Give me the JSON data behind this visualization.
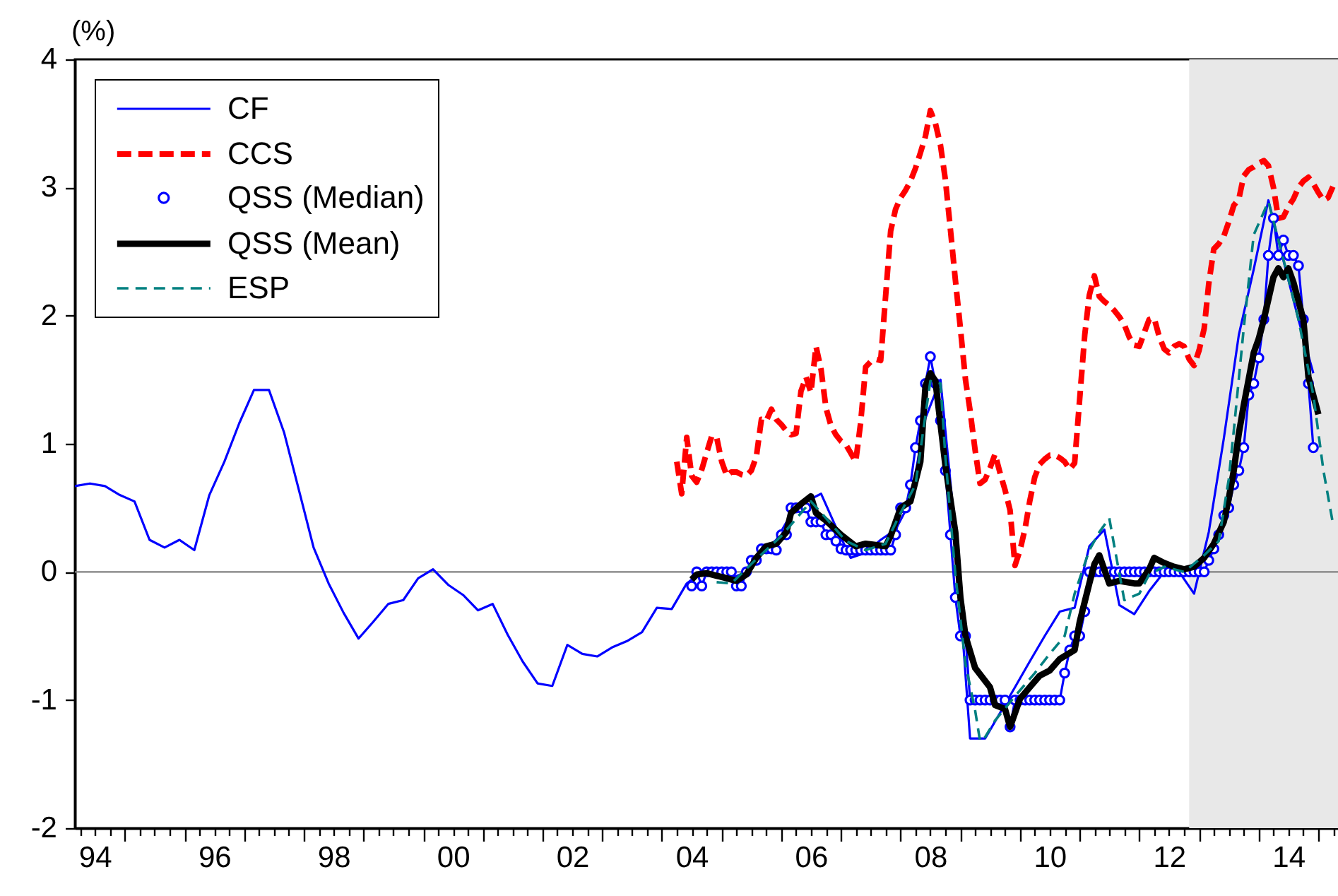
{
  "chart_data": {
    "type": "line",
    "ylabel": "(%)",
    "xlim": [
      "1994-03",
      "2015-05"
    ],
    "ylim": [
      -2,
      4
    ],
    "xticks": [
      {
        "value": "1994-04",
        "label": null
      },
      {
        "value": "1994-07",
        "label": "94"
      },
      {
        "value": "1994-10",
        "label": null
      },
      {
        "value": "1995-01",
        "label": null
      },
      {
        "value": "1995-04",
        "label": null
      },
      {
        "value": "1995-07",
        "label": null
      },
      {
        "value": "1995-10",
        "label": null
      },
      {
        "value": "1996-01",
        "label": null
      },
      {
        "value": "1996-04",
        "label": null
      },
      {
        "value": "1996-07",
        "label": "96"
      },
      {
        "value": "1996-10",
        "label": null
      },
      {
        "value": "1997-01",
        "label": null
      },
      {
        "value": "1997-04",
        "label": null
      },
      {
        "value": "1997-07",
        "label": null
      },
      {
        "value": "1997-10",
        "label": null
      },
      {
        "value": "1998-01",
        "label": null
      },
      {
        "value": "1998-04",
        "label": null
      },
      {
        "value": "1998-07",
        "label": "98"
      },
      {
        "value": "1998-10",
        "label": null
      },
      {
        "value": "1999-01",
        "label": null
      },
      {
        "value": "1999-04",
        "label": null
      },
      {
        "value": "1999-07",
        "label": null
      },
      {
        "value": "1999-10",
        "label": null
      },
      {
        "value": "2000-01",
        "label": null
      },
      {
        "value": "2000-04",
        "label": null
      },
      {
        "value": "2000-07",
        "label": "00"
      },
      {
        "value": "2000-10",
        "label": null
      },
      {
        "value": "2001-01",
        "label": null
      },
      {
        "value": "2001-04",
        "label": null
      },
      {
        "value": "2001-07",
        "label": null
      },
      {
        "value": "2001-10",
        "label": null
      },
      {
        "value": "2002-01",
        "label": null
      },
      {
        "value": "2002-04",
        "label": null
      },
      {
        "value": "2002-07",
        "label": "02"
      },
      {
        "value": "2002-10",
        "label": null
      },
      {
        "value": "2003-01",
        "label": null
      },
      {
        "value": "2003-04",
        "label": null
      },
      {
        "value": "2003-07",
        "label": null
      },
      {
        "value": "2003-10",
        "label": null
      },
      {
        "value": "2004-01",
        "label": null
      },
      {
        "value": "2004-04",
        "label": null
      },
      {
        "value": "2004-07",
        "label": "04"
      },
      {
        "value": "2004-10",
        "label": null
      },
      {
        "value": "2005-01",
        "label": null
      },
      {
        "value": "2005-04",
        "label": null
      },
      {
        "value": "2005-07",
        "label": null
      },
      {
        "value": "2005-10",
        "label": null
      },
      {
        "value": "2006-01",
        "label": null
      },
      {
        "value": "2006-04",
        "label": null
      },
      {
        "value": "2006-07",
        "label": "06"
      },
      {
        "value": "2006-10",
        "label": null
      },
      {
        "value": "2007-01",
        "label": null
      },
      {
        "value": "2007-04",
        "label": null
      },
      {
        "value": "2007-07",
        "label": null
      },
      {
        "value": "2007-10",
        "label": null
      },
      {
        "value": "2008-01",
        "label": null
      },
      {
        "value": "2008-04",
        "label": null
      },
      {
        "value": "2008-07",
        "label": "08"
      },
      {
        "value": "2008-10",
        "label": null
      },
      {
        "value": "2009-01",
        "label": null
      },
      {
        "value": "2009-04",
        "label": null
      },
      {
        "value": "2009-07",
        "label": null
      },
      {
        "value": "2009-10",
        "label": null
      },
      {
        "value": "2010-01",
        "label": null
      },
      {
        "value": "2010-04",
        "label": null
      },
      {
        "value": "2010-07",
        "label": "10"
      },
      {
        "value": "2010-10",
        "label": null
      },
      {
        "value": "2011-01",
        "label": null
      },
      {
        "value": "2011-04",
        "label": null
      },
      {
        "value": "2011-07",
        "label": null
      },
      {
        "value": "2011-10",
        "label": null
      },
      {
        "value": "2012-01",
        "label": null
      },
      {
        "value": "2012-04",
        "label": null
      },
      {
        "value": "2012-07",
        "label": "12"
      },
      {
        "value": "2012-10",
        "label": null
      },
      {
        "value": "2013-01",
        "label": null
      },
      {
        "value": "2013-04",
        "label": null
      },
      {
        "value": "2013-07",
        "label": null
      },
      {
        "value": "2013-10",
        "label": null
      },
      {
        "value": "2014-01",
        "label": null
      },
      {
        "value": "2014-04",
        "label": null
      },
      {
        "value": "2014-07",
        "label": "14"
      },
      {
        "value": "2014-10",
        "label": null
      },
      {
        "value": "2015-01",
        "label": null
      },
      {
        "value": "2015-04",
        "label": null
      }
    ],
    "yticks": [
      -2,
      -1,
      0,
      1,
      2,
      3,
      4
    ],
    "legend": "top left",
    "ref_lines": [
      {
        "axis": "y",
        "value": 0,
        "color": "#808080"
      }
    ],
    "bands": [
      {
        "axis": "x",
        "from": "2012-11",
        "to": "2015-05",
        "color": "#e8e8e8"
      }
    ],
    "series": [
      {
        "name": "CF",
        "color": "#0000ff",
        "line_style": "solid",
        "marker": "none",
        "x": [
          "1994-03",
          "1994-06",
          "1994-09",
          "1994-12",
          "1995-03",
          "1995-06",
          "1995-09",
          "1995-12",
          "1996-03",
          "1996-06",
          "1996-09",
          "1996-12",
          "1997-03",
          "1997-06",
          "1997-09",
          "1997-12",
          "1998-03",
          "1998-06",
          "1998-09",
          "1998-12",
          "1999-03",
          "1999-06",
          "1999-09",
          "1999-12",
          "2000-03",
          "2000-06",
          "2000-09",
          "2000-12",
          "2001-03",
          "2001-06",
          "2001-09",
          "2001-12",
          "2002-03",
          "2002-06",
          "2002-09",
          "2002-12",
          "2003-03",
          "2003-06",
          "2003-09",
          "2003-12",
          "2004-03",
          "2004-06",
          "2004-09",
          "2004-12",
          "2005-03",
          "2005-06",
          "2005-09",
          "2005-12",
          "2006-03",
          "2006-06",
          "2006-09",
          "2006-12",
          "2007-03",
          "2007-06",
          "2007-09",
          "2007-12",
          "2008-03",
          "2008-06",
          "2008-09",
          "2008-12",
          "2009-03",
          "2009-06",
          "2009-09",
          "2009-12",
          "2010-03",
          "2010-06",
          "2010-09",
          "2010-12",
          "2011-03",
          "2011-06",
          "2011-09",
          "2011-12",
          "2012-03",
          "2012-06",
          "2012-09",
          "2012-12",
          "2013-03",
          "2013-06",
          "2013-09",
          "2013-12",
          "2014-03",
          "2014-06",
          "2014-09",
          "2014-12"
        ],
        "values": [
          0.67,
          0.69,
          0.67,
          0.6,
          0.55,
          0.25,
          0.19,
          0.25,
          0.17,
          0.6,
          0.86,
          1.16,
          1.42,
          1.42,
          1.09,
          0.64,
          0.19,
          -0.09,
          -0.32,
          -0.52,
          -0.39,
          -0.25,
          -0.22,
          -0.05,
          0.02,
          -0.1,
          -0.18,
          -0.3,
          -0.25,
          -0.49,
          -0.7,
          -0.87,
          -0.89,
          -0.57,
          -0.64,
          -0.66,
          -0.59,
          -0.54,
          -0.47,
          -0.28,
          -0.29,
          -0.09,
          0.0,
          -0.02,
          -0.05,
          0.0,
          0.15,
          0.25,
          0.45,
          0.55,
          0.61,
          0.35,
          0.11,
          0.15,
          0.25,
          0.33,
          0.55,
          1.2,
          1.5,
          0.3,
          -1.3,
          -1.3,
          -1.1,
          -0.9,
          -0.7,
          -0.5,
          -0.31,
          -0.28,
          0.2,
          0.33,
          -0.26,
          -0.33,
          -0.15,
          0.0,
          0.0,
          -0.17,
          0.31,
          1.04,
          1.85,
          2.36,
          2.9,
          2.43,
          1.97,
          1.55
        ]
      },
      {
        "name": "CCS",
        "color": "#ff0000",
        "line_style": "dashed",
        "marker": "none",
        "x": [
          "2004-04",
          "2004-05",
          "2004-06",
          "2004-07",
          "2004-08",
          "2004-09",
          "2004-10",
          "2004-11",
          "2004-12",
          "2005-01",
          "2005-02",
          "2005-03",
          "2005-04",
          "2005-05",
          "2005-06",
          "2005-07",
          "2005-08",
          "2005-09",
          "2005-10",
          "2005-11",
          "2005-12",
          "2006-01",
          "2006-02",
          "2006-03",
          "2006-04",
          "2006-05",
          "2006-06",
          "2006-07",
          "2006-08",
          "2006-09",
          "2006-10",
          "2006-11",
          "2006-12",
          "2007-01",
          "2007-02",
          "2007-03",
          "2007-04",
          "2007-05",
          "2007-06",
          "2007-07",
          "2007-08",
          "2007-09",
          "2007-10",
          "2007-11",
          "2007-12",
          "2008-01",
          "2008-02",
          "2008-03",
          "2008-04",
          "2008-05",
          "2008-06",
          "2008-07",
          "2008-08",
          "2008-09",
          "2008-10",
          "2008-11",
          "2008-12",
          "2009-01",
          "2009-02",
          "2009-03",
          "2009-04",
          "2009-05",
          "2009-06",
          "2009-07",
          "2009-08",
          "2009-09",
          "2009-10",
          "2009-11",
          "2009-12",
          "2010-01",
          "2010-02",
          "2010-03",
          "2010-04",
          "2010-05",
          "2010-06",
          "2010-07",
          "2010-08",
          "2010-09",
          "2010-10",
          "2010-11",
          "2010-12",
          "2011-01",
          "2011-02",
          "2011-03",
          "2011-04",
          "2011-05",
          "2011-06",
          "2011-07",
          "2011-08",
          "2011-09",
          "2011-10",
          "2011-11",
          "2011-12",
          "2012-01",
          "2012-02",
          "2012-03",
          "2012-04",
          "2012-05",
          "2012-06",
          "2012-07",
          "2012-08",
          "2012-09",
          "2012-10",
          "2012-11",
          "2012-12",
          "2013-01",
          "2013-02",
          "2013-03",
          "2013-04",
          "2013-05",
          "2013-06",
          "2013-07",
          "2013-08",
          "2013-09",
          "2013-10",
          "2013-11",
          "2013-12",
          "2014-01",
          "2014-02",
          "2014-03",
          "2014-04",
          "2014-05",
          "2014-06",
          "2014-07",
          "2014-08",
          "2014-09",
          "2014-10",
          "2014-11",
          "2014-12",
          "2015-01",
          "2015-02",
          "2015-03",
          "2015-04"
        ],
        "values": [
          0.86,
          0.61,
          1.05,
          0.75,
          0.7,
          0.8,
          0.93,
          1.06,
          1.05,
          0.86,
          0.75,
          0.78,
          0.78,
          0.76,
          0.75,
          0.79,
          0.9,
          1.19,
          1.18,
          1.27,
          1.19,
          1.15,
          1.1,
          1.07,
          1.08,
          1.41,
          1.52,
          1.4,
          1.76,
          1.58,
          1.28,
          1.14,
          1.07,
          1.02,
          0.99,
          0.93,
          0.86,
          1.16,
          1.6,
          1.64,
          1.66,
          1.65,
          2.15,
          2.66,
          2.83,
          2.92,
          2.98,
          3.05,
          3.15,
          3.27,
          3.4,
          3.6,
          3.5,
          3.33,
          3.06,
          2.67,
          2.28,
          1.9,
          1.5,
          1.26,
          0.95,
          0.69,
          0.72,
          0.81,
          0.92,
          0.77,
          0.64,
          0.48,
          0.05,
          0.17,
          0.34,
          0.55,
          0.74,
          0.84,
          0.88,
          0.91,
          0.91,
          0.89,
          0.86,
          0.8,
          0.85,
          1.35,
          1.85,
          2.16,
          2.31,
          2.15,
          2.11,
          2.08,
          2.04,
          1.99,
          1.93,
          1.83,
          1.77,
          1.76,
          1.87,
          1.97,
          1.98,
          1.84,
          1.74,
          1.71,
          1.76,
          1.78,
          1.76,
          1.66,
          1.61,
          1.73,
          1.9,
          2.25,
          2.52,
          2.56,
          2.62,
          2.73,
          2.86,
          2.91,
          3.09,
          3.14,
          3.16,
          3.19,
          3.21,
          3.17,
          3.0,
          2.76,
          2.77,
          2.85,
          2.91,
          3.0,
          3.05,
          3.08,
          3.03,
          2.96,
          2.9,
          2.92,
          3.01
        ]
      },
      {
        "name": "QSS (Median)",
        "color": "#0000ff",
        "line_style": "solid",
        "marker": "circle",
        "x": [
          "2004-07",
          "2004-08",
          "2004-09",
          "2004-10",
          "2004-11",
          "2004-12",
          "2005-01",
          "2005-02",
          "2005-03",
          "2005-04",
          "2005-05",
          "2005-06",
          "2005-07",
          "2005-08",
          "2005-09",
          "2005-10",
          "2005-11",
          "2005-12",
          "2006-01",
          "2006-02",
          "2006-03",
          "2006-04",
          "2006-05",
          "2006-06",
          "2006-07",
          "2006-08",
          "2006-09",
          "2006-10",
          "2006-11",
          "2006-12",
          "2007-01",
          "2007-02",
          "2007-03",
          "2007-04",
          "2007-05",
          "2007-06",
          "2007-07",
          "2007-08",
          "2007-09",
          "2007-10",
          "2007-11",
          "2007-12",
          "2008-01",
          "2008-02",
          "2008-03",
          "2008-04",
          "2008-05",
          "2008-06",
          "2008-07",
          "2008-08",
          "2008-09",
          "2008-10",
          "2008-11",
          "2008-12",
          "2009-01",
          "2009-02",
          "2009-03",
          "2009-04",
          "2009-05",
          "2009-06",
          "2009-07",
          "2009-08",
          "2009-09",
          "2009-10",
          "2009-11",
          "2009-12",
          "2010-01",
          "2010-02",
          "2010-03",
          "2010-04",
          "2010-05",
          "2010-06",
          "2010-07",
          "2010-08",
          "2010-09",
          "2010-10",
          "2010-11",
          "2010-12",
          "2011-01",
          "2011-02",
          "2011-03",
          "2011-04",
          "2011-05",
          "2011-06",
          "2011-07",
          "2011-08",
          "2011-09",
          "2011-10",
          "2011-11",
          "2011-12",
          "2012-01",
          "2012-02",
          "2012-03",
          "2012-04",
          "2012-05",
          "2012-06",
          "2012-07",
          "2012-08",
          "2012-09",
          "2012-10",
          "2012-11",
          "2012-12",
          "2013-01",
          "2013-02",
          "2013-03",
          "2013-04",
          "2013-05",
          "2013-06",
          "2013-07",
          "2013-08",
          "2013-09",
          "2013-10",
          "2013-11",
          "2013-12",
          "2014-01",
          "2014-02",
          "2014-03",
          "2014-04",
          "2014-05",
          "2014-06",
          "2014-07",
          "2014-08",
          "2014-09",
          "2014-10",
          "2014-11",
          "2014-12"
        ],
        "values": [
          -0.11,
          0.0,
          -0.11,
          0.0,
          0.0,
          0.0,
          0.0,
          0.0,
          0.0,
          -0.11,
          -0.11,
          0.0,
          0.09,
          0.09,
          0.18,
          0.18,
          0.18,
          0.17,
          0.29,
          0.29,
          0.5,
          0.5,
          0.5,
          0.5,
          0.39,
          0.39,
          0.39,
          0.29,
          0.29,
          0.24,
          0.18,
          0.17,
          0.17,
          0.17,
          0.17,
          0.17,
          0.17,
          0.17,
          0.17,
          0.17,
          0.17,
          0.29,
          0.5,
          0.5,
          0.68,
          0.97,
          1.18,
          1.47,
          1.68,
          1.47,
          1.18,
          0.79,
          0.29,
          -0.2,
          -0.5,
          -0.5,
          -1.0,
          -1.0,
          -1.0,
          -1.0,
          -1.0,
          -1.0,
          -1.0,
          -1.0,
          -1.21,
          -1.0,
          -1.0,
          -1.0,
          -1.0,
          -1.0,
          -1.0,
          -1.0,
          -1.0,
          -1.0,
          -1.0,
          -0.79,
          -0.61,
          -0.5,
          -0.5,
          -0.31,
          0.0,
          0.0,
          0.0,
          0.0,
          0.0,
          0.0,
          0.0,
          0.0,
          0.0,
          0.0,
          0.0,
          0.0,
          0.0,
          0.0,
          0.0,
          0.0,
          0.0,
          0.0,
          0.0,
          0.0,
          0.0,
          0.0,
          0.0,
          0.0,
          0.09,
          0.18,
          0.29,
          0.44,
          0.5,
          0.68,
          0.79,
          0.97,
          1.38,
          1.47,
          1.67,
          1.97,
          2.47,
          2.76,
          2.47,
          2.59,
          2.47,
          2.47,
          2.39,
          1.97,
          1.47,
          0.97
        ]
      },
      {
        "name": "QSS (Mean)",
        "color": "#000000",
        "line_style": "solid",
        "marker": "none",
        "x": [
          "2004-07",
          "2004-08",
          "2004-10",
          "2004-12",
          "2005-02",
          "2005-04",
          "2005-06",
          "2005-08",
          "2005-10",
          "2005-12",
          "2006-02",
          "2006-03",
          "2006-05",
          "2006-07",
          "2006-08",
          "2006-10",
          "2007-01",
          "2007-04",
          "2007-06",
          "2007-10",
          "2007-11",
          "2008-01",
          "2008-03",
          "2008-05",
          "2008-06",
          "2008-07",
          "2008-08",
          "2008-10",
          "2008-12",
          "2009-01",
          "2009-02",
          "2009-04",
          "2009-07",
          "2009-08",
          "2009-10",
          "2009-11",
          "2010-01",
          "2010-03",
          "2010-05",
          "2010-07",
          "2010-09",
          "2010-12",
          "2011-01",
          "2011-03",
          "2011-04",
          "2011-05",
          "2011-07",
          "2011-09",
          "2011-12",
          "2012-01",
          "2012-03",
          "2012-04",
          "2012-06",
          "2012-08",
          "2012-10",
          "2012-12",
          "2013-02",
          "2013-04",
          "2013-06",
          "2013-07",
          "2013-08",
          "2013-09",
          "2013-10",
          "2013-12",
          "2014-01",
          "2014-02",
          "2014-04",
          "2014-05",
          "2014-06",
          "2014-07",
          "2014-08",
          "2014-10",
          "2014-11",
          "2015-01"
        ],
        "values": [
          -0.06,
          -0.02,
          -0.01,
          -0.03,
          -0.05,
          -0.07,
          -0.02,
          0.11,
          0.2,
          0.22,
          0.31,
          0.46,
          0.53,
          0.59,
          0.46,
          0.4,
          0.29,
          0.2,
          0.22,
          0.2,
          0.28,
          0.5,
          0.55,
          0.86,
          1.45,
          1.55,
          1.49,
          0.83,
          0.31,
          -0.2,
          -0.5,
          -0.75,
          -0.9,
          -1.04,
          -1.07,
          -1.21,
          -0.99,
          -0.9,
          -0.81,
          -0.77,
          -0.68,
          -0.61,
          -0.39,
          -0.09,
          0.06,
          0.13,
          -0.09,
          -0.07,
          -0.09,
          -0.09,
          0.02,
          0.11,
          0.07,
          0.04,
          0.02,
          0.04,
          0.11,
          0.22,
          0.39,
          0.57,
          0.79,
          1.08,
          1.3,
          1.71,
          1.82,
          1.97,
          2.3,
          2.37,
          2.3,
          2.37,
          2.26,
          1.97,
          1.52,
          1.23
        ]
      },
      {
        "name": "ESP",
        "color": "#008080",
        "line_style": "dashed",
        "marker": "none",
        "x": [
          "2004-12",
          "2005-03",
          "2005-08",
          "2006-01",
          "2006-07",
          "2006-10",
          "2007-02",
          "2007-06",
          "2007-10",
          "2008-01",
          "2008-04",
          "2008-07",
          "2008-09",
          "2008-10",
          "2008-12",
          "2009-02",
          "2009-04",
          "2009-05",
          "2009-06",
          "2009-08",
          "2009-12",
          "2010-04",
          "2010-07",
          "2010-10",
          "2010-12",
          "2011-03",
          "2011-05",
          "2011-07",
          "2011-08",
          "2011-10",
          "2012-01",
          "2012-03",
          "2012-06",
          "2012-10",
          "2013-02",
          "2013-05",
          "2013-07",
          "2013-08",
          "2013-10",
          "2013-12",
          "2014-03",
          "2014-06",
          "2014-09",
          "2014-12",
          "2015-02",
          "2015-04"
        ],
        "values": [
          -0.08,
          -0.09,
          0.1,
          0.28,
          0.55,
          0.42,
          0.24,
          0.17,
          0.22,
          0.46,
          0.68,
          1.49,
          1.47,
          0.9,
          -0.02,
          -0.72,
          -1.08,
          -1.32,
          -1.29,
          -1.16,
          -0.97,
          -0.79,
          -0.64,
          -0.5,
          -0.17,
          0.17,
          0.31,
          0.42,
          0.2,
          -0.22,
          -0.17,
          -0.02,
          0.04,
          0.0,
          0.13,
          0.24,
          0.72,
          1.1,
          1.9,
          2.63,
          2.89,
          2.44,
          1.97,
          1.38,
          0.79,
          0.37
        ]
      }
    ]
  }
}
